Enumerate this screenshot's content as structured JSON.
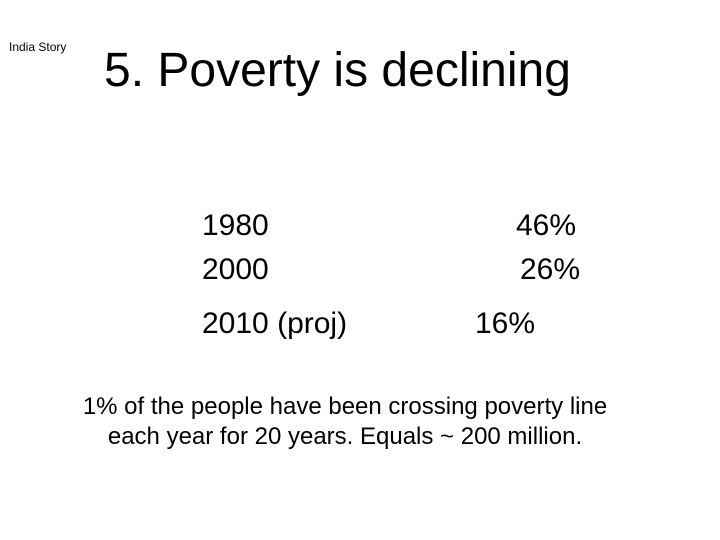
{
  "slide": {
    "label": "India Story",
    "title": "5. Poverty is declining",
    "rows": [
      {
        "year": "1980",
        "value": "46%"
      },
      {
        "year": "2000",
        "value": "26%"
      },
      {
        "year": "2010 (proj)",
        "value": "16%"
      }
    ],
    "footnote": {
      "line1": "1% of the people have been crossing poverty line",
      "line2": "each year for 20 years. Equals ~ 200 million."
    }
  }
}
